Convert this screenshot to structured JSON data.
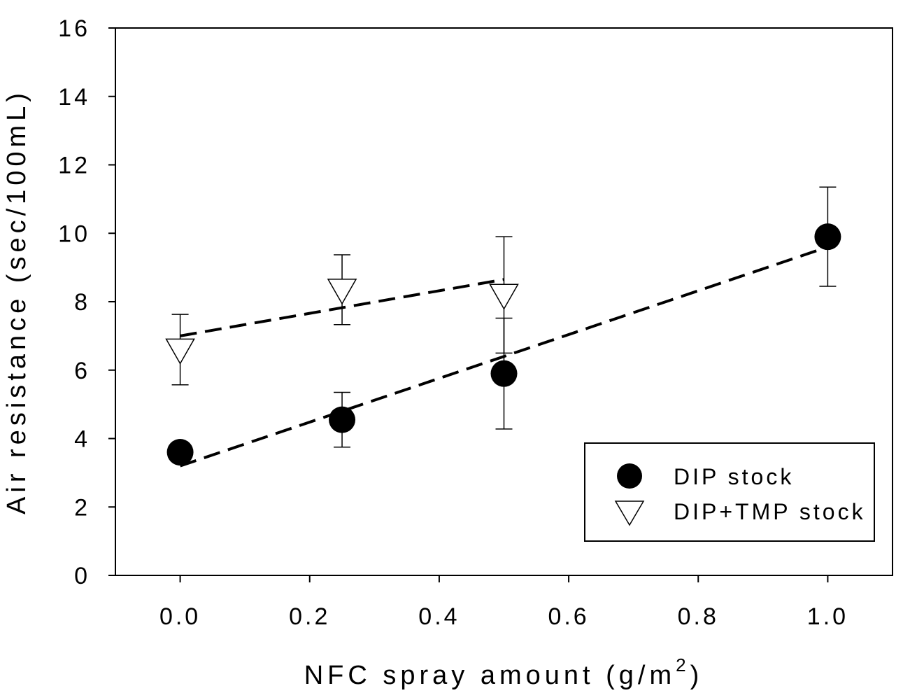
{
  "chart_data": {
    "type": "scatter",
    "xlabel": "NFC spray amount (g/m",
    "xlabel_superscript": "2",
    "xlabel_suffix": ")",
    "ylabel": "Air resistance (sec/100mL)",
    "xlim": [
      -0.1,
      1.1
    ],
    "ylim": [
      0,
      16
    ],
    "x_ticks": [
      "0.0",
      "0.2",
      "0.4",
      "0.6",
      "0.8",
      "1.0"
    ],
    "y_ticks": [
      "0",
      "2",
      "4",
      "6",
      "8",
      "10",
      "12",
      "14",
      "16"
    ],
    "grid": false,
    "legend_position": "bottom-right",
    "series": [
      {
        "name": "DIP stock",
        "marker": "filled-circle",
        "color": "#000000",
        "x": [
          0.0,
          0.25,
          0.5,
          1.0
        ],
        "y": [
          3.6,
          4.55,
          5.9,
          9.9
        ],
        "err": [
          0.0,
          0.8,
          1.62,
          1.45
        ],
        "trend": {
          "x": [
            0.0,
            1.0
          ],
          "y": [
            3.2,
            9.6
          ]
        }
      },
      {
        "name": "DIP+TMP stock",
        "marker": "open-triangle-down",
        "color": "#000000",
        "x": [
          0.0,
          0.25,
          0.5
        ],
        "y": [
          6.6,
          8.35,
          8.2
        ],
        "err": [
          1.03,
          1.02,
          1.7
        ],
        "trend": {
          "x": [
            0.0,
            0.5
          ],
          "y": [
            7.0,
            8.65
          ]
        }
      }
    ]
  }
}
